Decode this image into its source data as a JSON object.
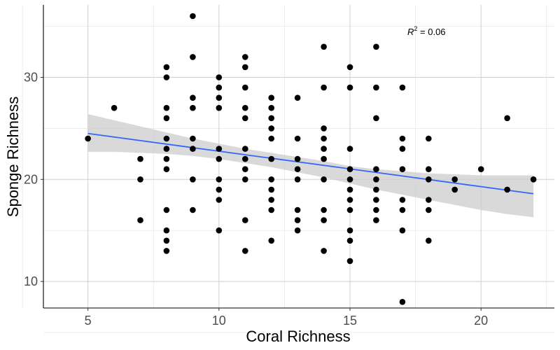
{
  "chart_data": {
    "type": "scatter",
    "xlabel": "Coral Richness",
    "ylabel": "Sponge Richness",
    "xlim": [
      3.3,
      22.8
    ],
    "ylim": [
      7.4,
      37.1
    ],
    "xticks": [
      5,
      10,
      15,
      20
    ],
    "yticks": [
      10,
      20,
      30
    ],
    "grid": true,
    "annotation": {
      "base": "R",
      "sup": "2",
      "rest": " = 0.06"
    },
    "colors": {
      "points": "#000000",
      "line": "#3366FF",
      "ribbon": "#cccccc"
    },
    "trend": {
      "x": [
        5,
        22
      ],
      "y": [
        24.5,
        18.6
      ]
    },
    "band": {
      "x": [
        5,
        6,
        7,
        8,
        9,
        10,
        11,
        12,
        13,
        14,
        15,
        16,
        17,
        18,
        19,
        20,
        21,
        22
      ],
      "lower": [
        22.7,
        22.7,
        22.6,
        22.5,
        22.3,
        22.0,
        21.6,
        21.2,
        20.7,
        20.2,
        19.6,
        19.0,
        18.5,
        18.0,
        17.5,
        17.0,
        16.6,
        16.3
      ],
      "upper": [
        26.4,
        25.8,
        25.2,
        24.6,
        24.0,
        23.5,
        23.0,
        22.6,
        22.2,
        21.8,
        21.3,
        21.0,
        20.8,
        20.6,
        20.5,
        20.4,
        20.4,
        20.4
      ]
    },
    "points": [
      [
        5,
        24
      ],
      [
        6,
        27
      ],
      [
        7,
        22
      ],
      [
        7,
        20
      ],
      [
        7,
        16
      ],
      [
        8,
        31
      ],
      [
        8,
        30
      ],
      [
        8,
        27
      ],
      [
        8,
        26
      ],
      [
        8,
        24
      ],
      [
        8,
        23
      ],
      [
        8,
        22
      ],
      [
        8,
        21
      ],
      [
        8,
        17
      ],
      [
        8,
        15
      ],
      [
        8,
        14
      ],
      [
        8,
        13
      ],
      [
        9,
        36
      ],
      [
        9,
        32
      ],
      [
        9,
        28
      ],
      [
        9,
        27
      ],
      [
        9,
        24
      ],
      [
        9,
        23
      ],
      [
        9,
        20
      ],
      [
        9,
        17
      ],
      [
        10,
        30
      ],
      [
        10,
        29
      ],
      [
        10,
        28
      ],
      [
        10,
        27
      ],
      [
        10,
        23
      ],
      [
        10,
        22
      ],
      [
        10,
        20
      ],
      [
        10,
        19
      ],
      [
        10,
        18
      ],
      [
        10,
        15
      ],
      [
        11,
        32
      ],
      [
        11,
        31
      ],
      [
        11,
        29
      ],
      [
        11,
        27
      ],
      [
        11,
        26
      ],
      [
        11,
        23
      ],
      [
        11,
        22
      ],
      [
        11,
        21
      ],
      [
        11,
        20
      ],
      [
        11,
        16
      ],
      [
        11,
        13
      ],
      [
        12,
        28
      ],
      [
        12,
        27
      ],
      [
        12,
        26
      ],
      [
        12,
        25
      ],
      [
        12,
        24
      ],
      [
        12,
        22
      ],
      [
        12,
        20
      ],
      [
        12,
        19
      ],
      [
        12,
        18
      ],
      [
        12,
        17
      ],
      [
        12,
        14
      ],
      [
        13,
        28
      ],
      [
        13,
        24
      ],
      [
        13,
        22
      ],
      [
        13,
        21
      ],
      [
        13,
        20
      ],
      [
        13,
        17
      ],
      [
        13,
        16
      ],
      [
        13,
        15
      ],
      [
        14,
        33
      ],
      [
        14,
        29
      ],
      [
        14,
        25
      ],
      [
        14,
        24
      ],
      [
        14,
        23
      ],
      [
        14,
        22
      ],
      [
        14,
        20
      ],
      [
        14,
        17
      ],
      [
        14,
        16
      ],
      [
        14,
        13
      ],
      [
        15,
        31
      ],
      [
        15,
        29
      ],
      [
        15,
        23
      ],
      [
        15,
        21
      ],
      [
        15,
        20
      ],
      [
        15,
        19
      ],
      [
        15,
        18
      ],
      [
        15,
        17
      ],
      [
        15,
        15
      ],
      [
        15,
        14
      ],
      [
        15,
        12
      ],
      [
        16,
        33
      ],
      [
        16,
        29
      ],
      [
        16,
        26
      ],
      [
        16,
        21
      ],
      [
        16,
        20
      ],
      [
        16,
        19
      ],
      [
        16,
        18
      ],
      [
        16,
        17
      ],
      [
        16,
        16
      ],
      [
        17,
        29
      ],
      [
        17,
        24
      ],
      [
        17,
        23
      ],
      [
        17,
        21
      ],
      [
        17,
        18
      ],
      [
        17,
        17
      ],
      [
        17,
        15
      ],
      [
        17,
        8
      ],
      [
        18,
        24
      ],
      [
        18,
        21
      ],
      [
        18,
        20
      ],
      [
        18,
        18
      ],
      [
        18,
        17
      ],
      [
        18,
        14
      ],
      [
        19,
        20
      ],
      [
        19,
        19
      ],
      [
        20,
        21
      ],
      [
        21,
        26
      ],
      [
        21,
        19
      ],
      [
        22,
        20
      ]
    ]
  }
}
